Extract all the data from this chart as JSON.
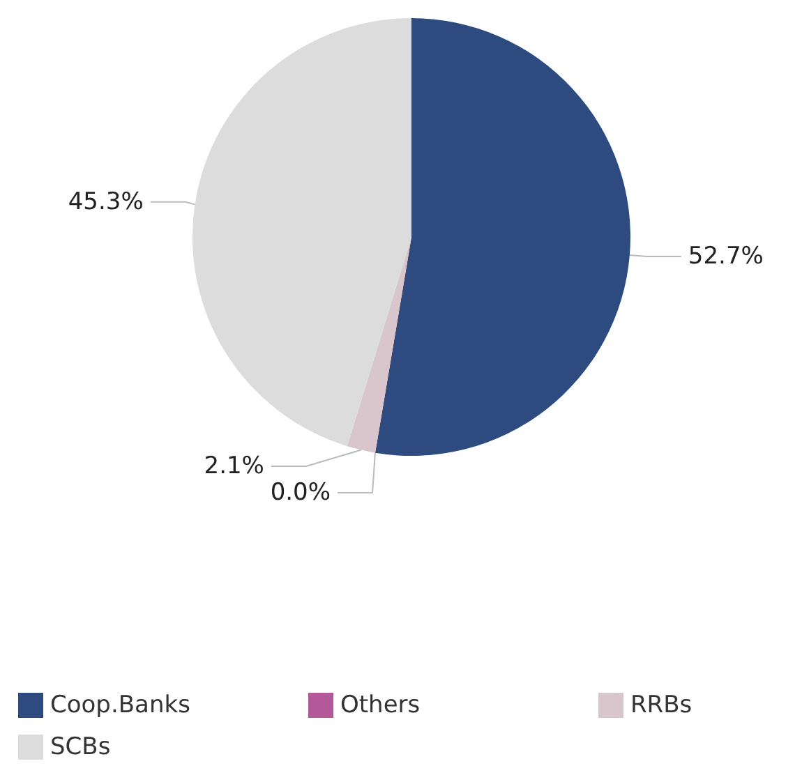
{
  "chart_data": {
    "type": "pie",
    "categories": [
      "Coop.Banks",
      "Others",
      "RRBs",
      "SCBs"
    ],
    "values": [
      52.7,
      0.0,
      2.1,
      45.3
    ],
    "colors": [
      "#2e4b80",
      "#b5589a",
      "#d8c6cc",
      "#dcdcdc"
    ],
    "value_labels": [
      "52.7%",
      "0.0%",
      "2.1%",
      "45.3%"
    ],
    "legend": "bottom"
  }
}
